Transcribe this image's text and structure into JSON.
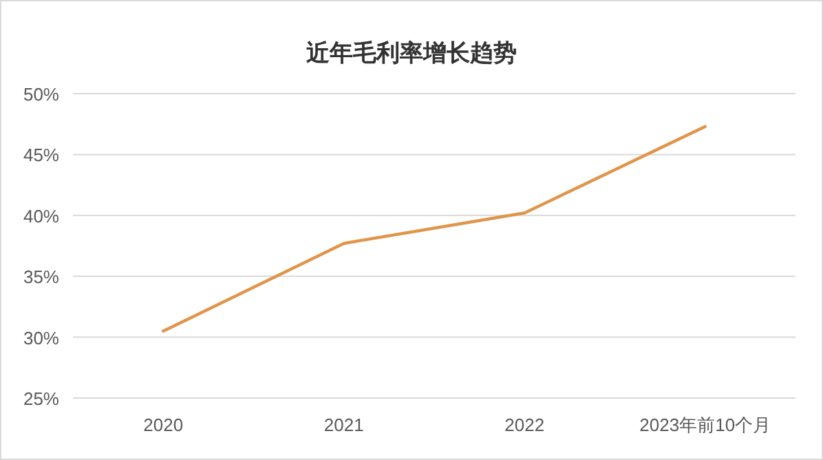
{
  "chart_data": {
    "type": "line",
    "title": "近年毛利率增长趋势",
    "categories": [
      "2020",
      "2021",
      "2022",
      "2023年前10个月"
    ],
    "series": [
      {
        "color": "#e0954a",
        "values": [
          30.5,
          37.7,
          40.2,
          47.3
        ]
      }
    ],
    "ylim": [
      25,
      50
    ],
    "yticks": [
      {
        "value": 25,
        "label": "25%"
      },
      {
        "value": 30,
        "label": "30%"
      },
      {
        "value": 35,
        "label": "35%"
      },
      {
        "value": 40,
        "label": "40%"
      },
      {
        "value": 45,
        "label": "45%"
      },
      {
        "value": 50,
        "label": "50%"
      }
    ],
    "grid": "y",
    "marker": "none",
    "line_style": "solid"
  }
}
